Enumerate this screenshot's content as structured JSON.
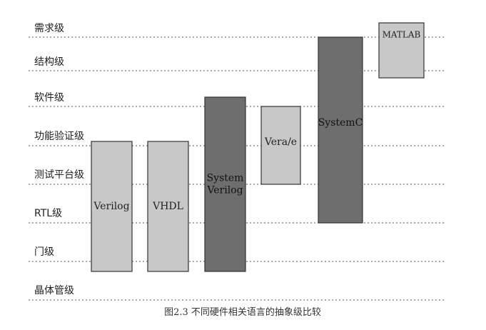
{
  "levels": [
    "需求级",
    "结构级",
    "软件级",
    "功能验证级",
    "测试平台级",
    "RTL级",
    "门级",
    "晶体管级"
  ],
  "languages": [
    {
      "label_lines": [
        "Verilog"
      ],
      "top_level": 3,
      "bottom_level": 6,
      "shade": "#c8c8c8"
    },
    {
      "label_lines": [
        "VHDL"
      ],
      "top_level": 3,
      "bottom_level": 6,
      "shade": "#c8c8c8"
    },
    {
      "label_lines": [
        "System",
        "Verilog"
      ],
      "top_level": 2,
      "bottom_level": 6,
      "shade": "#6e6e6e"
    },
    {
      "label_lines": [
        "Vera/e"
      ],
      "top_level": 2,
      "bottom_level": 4,
      "shade": "#c8c8c8"
    },
    {
      "label_lines": [
        "SystemC"
      ],
      "top_level": 0,
      "bottom_level": 5,
      "shade": "#6e6e6e"
    },
    {
      "label_lines": [
        "MATLAB"
      ],
      "top_level": 0,
      "bottom_level": 1,
      "shade": "#c8c8c8"
    }
  ],
  "caption": "图2.3 不同硬件相关语言的抽象级比较"
}
